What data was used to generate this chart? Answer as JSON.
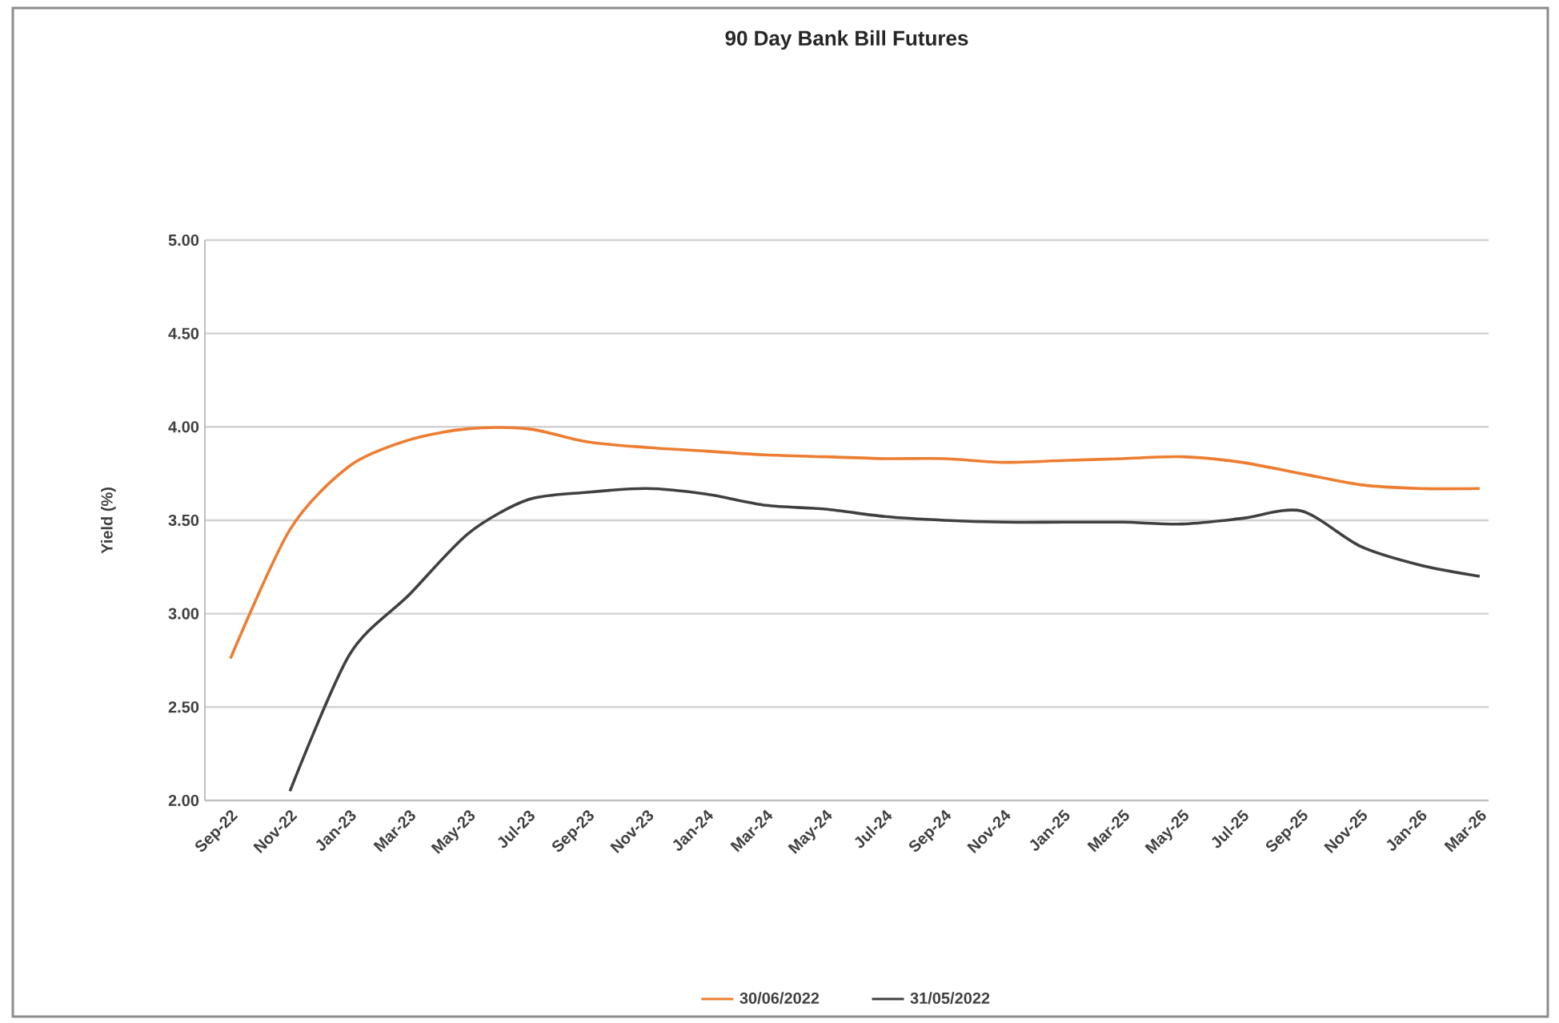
{
  "chart_data": {
    "type": "line",
    "title": "90 Day Bank Bill Futures",
    "ylabel": "Yield (%)",
    "categories": [
      "Sep-22",
      "Nov-22",
      "Jan-23",
      "Mar-23",
      "May-23",
      "Jul-23",
      "Sep-23",
      "Nov-23",
      "Jan-24",
      "Mar-24",
      "May-24",
      "Jul-24",
      "Sep-24",
      "Nov-24",
      "Jan-25",
      "Mar-25",
      "May-25",
      "Jul-25",
      "Sep-25",
      "Nov-25",
      "Jan-26",
      "Mar-26"
    ],
    "series": [
      {
        "name": "30/06/2022",
        "color": "#ed7d31",
        "values": [
          2.76,
          3.45,
          3.79,
          3.93,
          3.99,
          3.99,
          3.92,
          3.89,
          3.87,
          3.85,
          3.84,
          3.83,
          3.83,
          3.81,
          3.82,
          3.83,
          3.84,
          3.81,
          3.75,
          3.69,
          3.67,
          3.67
        ]
      },
      {
        "name": "31/05/2022",
        "color": "#404040",
        "values": [
          null,
          2.05,
          2.78,
          3.1,
          3.43,
          3.61,
          3.65,
          3.67,
          3.64,
          3.58,
          3.56,
          3.52,
          3.5,
          3.49,
          3.49,
          3.49,
          3.48,
          3.51,
          3.55,
          3.36,
          3.26,
          3.2
        ]
      }
    ],
    "ylim": [
      2,
      5
    ],
    "yticks": [
      {
        "value": 2,
        "label": "2.00"
      },
      {
        "value": 2.5,
        "label": "2.50"
      },
      {
        "value": 3,
        "label": "3.00"
      },
      {
        "value": 3.5,
        "label": "3.50"
      },
      {
        "value": 4,
        "label": "4.00"
      },
      {
        "value": 4.5,
        "label": "4.50"
      },
      {
        "value": 5,
        "label": "5.00"
      }
    ],
    "grid": "y",
    "legend": "bottom",
    "marker": "none",
    "line_style": "solid"
  }
}
